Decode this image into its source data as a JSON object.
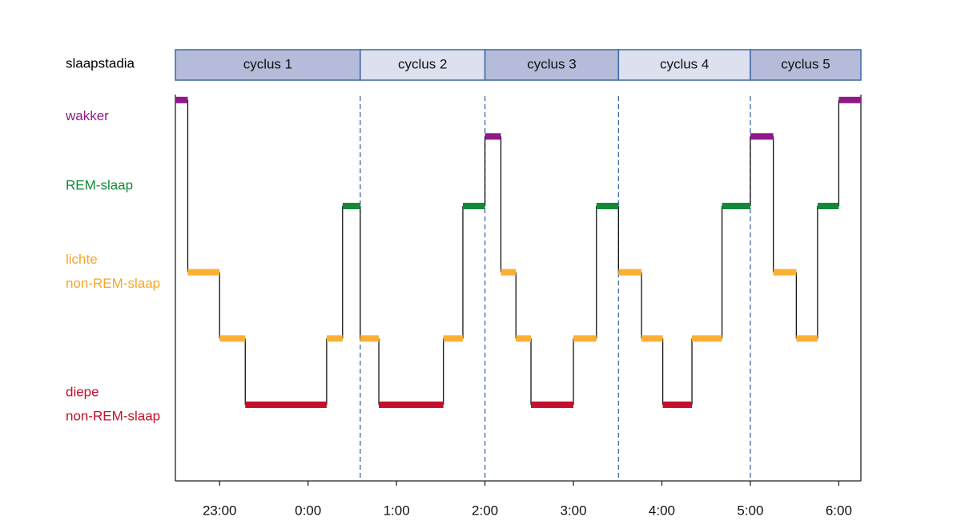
{
  "chart_data": {
    "type": "step",
    "cycles": {
      "label": "slaapstadia",
      "names": [
        "cyclus 1",
        "cyclus 2",
        "cyclus 3",
        "cyclus 4",
        "cyclus 5"
      ],
      "bounds": [
        22.5,
        24.59,
        26.0,
        27.51,
        29.0,
        30.25
      ],
      "colors": [
        "#b4bcda",
        "#dde1ef"
      ]
    },
    "x": [
      22.5,
      22.64,
      23.0,
      23.29,
      24.21,
      24.39,
      24.59,
      24.8,
      25.53,
      25.75,
      26.0,
      26.18,
      26.35,
      26.52,
      27.0,
      27.26,
      27.51,
      27.77,
      28.01,
      28.34,
      28.68,
      29.0,
      29.26,
      29.52,
      29.76,
      30.0
    ],
    "values": [
      4.6,
      2,
      1,
      0,
      1,
      3,
      1,
      0,
      1,
      3,
      4.05,
      2,
      1,
      0,
      1,
      3,
      2,
      1,
      0,
      1,
      3,
      4.05,
      2,
      1,
      3,
      4.6
    ],
    "colors": [
      "#8e1a8a",
      "#fbb034",
      "#fbb034",
      "#c3102b",
      "#fbb034",
      "#13893a",
      "#fbb034",
      "#c3102b",
      "#fbb034",
      "#13893a",
      "#8e1a8a",
      "#fbb034",
      "#fbb034",
      "#c3102b",
      "#fbb034",
      "#13893a",
      "#fbb034",
      "#fbb034",
      "#c3102b",
      "#fbb034",
      "#13893a",
      "#8e1a8a",
      "#fbb034",
      "#fbb034",
      "#13893a",
      "#8e1a8a"
    ],
    "xlim": [
      22.5,
      30.25
    ],
    "xticks": [
      {
        "value": 23,
        "label": "23:00"
      },
      {
        "value": 24,
        "label": "0:00"
      },
      {
        "value": 25,
        "label": "1:00"
      },
      {
        "value": 26,
        "label": "2:00"
      },
      {
        "value": 27,
        "label": "3:00"
      },
      {
        "value": 28,
        "label": "4:00"
      },
      {
        "value": 29,
        "label": "5:00"
      },
      {
        "value": 30,
        "label": "6:00"
      }
    ],
    "ylim": [
      -1.15,
      4.9
    ],
    "yticks": [
      {
        "value": 4.35,
        "label": [
          "wakker"
        ],
        "color": "#8e1a8a"
      },
      {
        "value": 3.3,
        "label": [
          "REM-slaap"
        ],
        "color": "#13893a"
      },
      {
        "value": 2.0,
        "label": [
          "lichte",
          "non-REM-slaap"
        ],
        "color": "#f5a623"
      },
      {
        "value": 0.0,
        "label": [
          "diepe",
          "non-REM-slaap"
        ],
        "color": "#c3102b"
      }
    ]
  }
}
